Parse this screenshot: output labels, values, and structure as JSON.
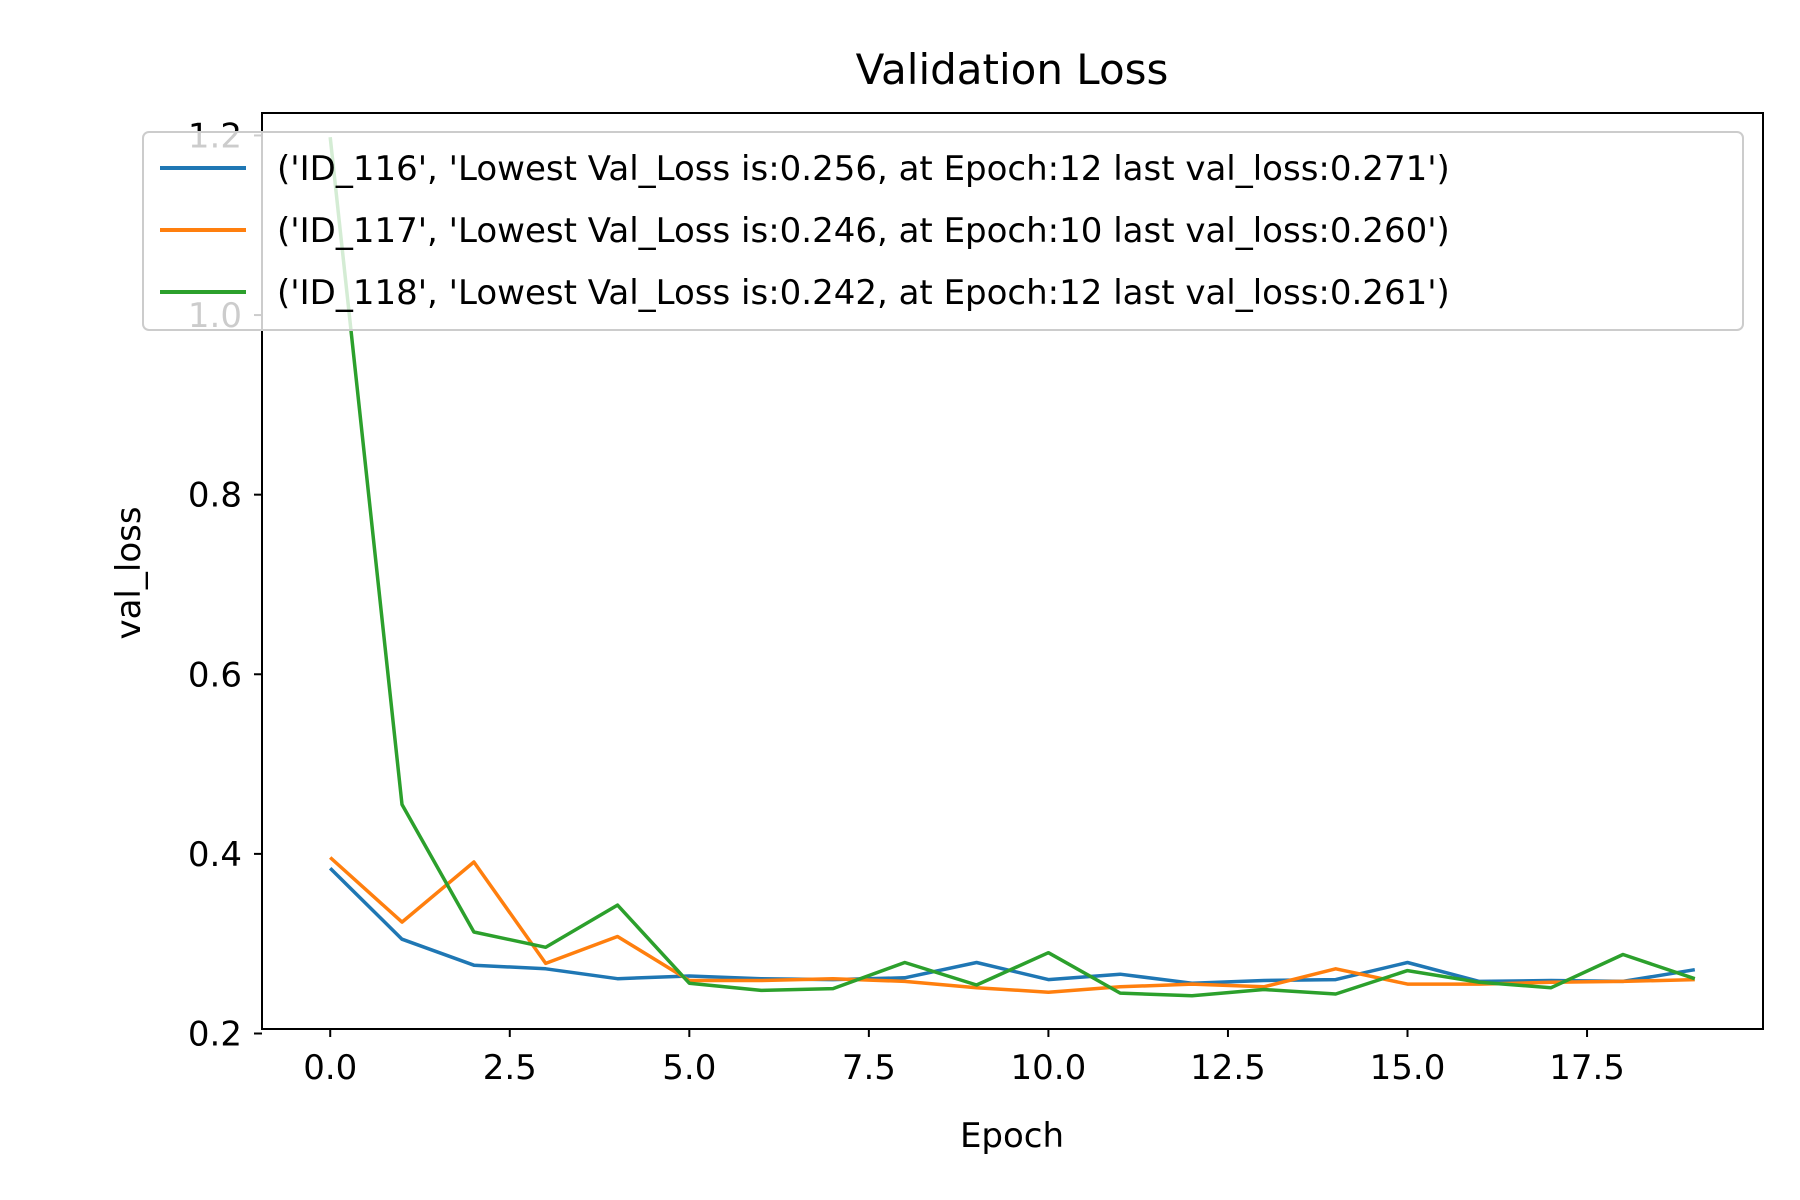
{
  "chart_data": {
    "type": "line",
    "title": "Validation Loss",
    "xlabel": "Epoch",
    "ylabel": "val_loss",
    "xlim": [
      -0.95,
      19.95
    ],
    "ylim": [
      0.205,
      1.225
    ],
    "x_ticks": [
      0.0,
      2.5,
      5.0,
      7.5,
      10.0,
      12.5,
      15.0,
      17.5
    ],
    "x_tick_labels": [
      "0.0",
      "2.5",
      "5.0",
      "7.5",
      "10.0",
      "12.5",
      "15.0",
      "17.5"
    ],
    "y_ticks": [
      0.2,
      0.4,
      0.6,
      0.8,
      1.0,
      1.2
    ],
    "y_tick_labels": [
      "0.2",
      "0.4",
      "0.6",
      "0.8",
      "1.0",
      "1.2"
    ],
    "grid": false,
    "legend_position": "top",
    "x": [
      0,
      1,
      2,
      3,
      4,
      5,
      6,
      7,
      8,
      9,
      10,
      11,
      12,
      13,
      14,
      15,
      16,
      17,
      18,
      19
    ],
    "series": [
      {
        "name": "('ID_116', 'Lowest Val_Loss is:0.256, at Epoch:12 last val_loss:0.271')",
        "color": "#1f77b4",
        "values": [
          0.384,
          0.305,
          0.276,
          0.272,
          0.261,
          0.264,
          0.261,
          0.26,
          0.262,
          0.279,
          0.26,
          0.266,
          0.256,
          0.259,
          0.26,
          0.279,
          0.258,
          0.259,
          0.258,
          0.271
        ]
      },
      {
        "name": "('ID_117', 'Lowest Val_Loss is:0.246, at Epoch:10 last val_loss:0.260')",
        "color": "#ff7f0e",
        "values": [
          0.396,
          0.324,
          0.391,
          0.278,
          0.308,
          0.259,
          0.259,
          0.261,
          0.258,
          0.251,
          0.246,
          0.252,
          0.255,
          0.252,
          0.272,
          0.255,
          0.255,
          0.257,
          0.258,
          0.26
        ]
      },
      {
        "name": "('ID_118', 'Lowest Val_Loss is:0.242, at Epoch:12 last val_loss:0.261')",
        "color": "#2ca02c",
        "values": [
          1.198,
          0.455,
          0.313,
          0.296,
          0.343,
          0.256,
          0.248,
          0.25,
          0.279,
          0.254,
          0.29,
          0.245,
          0.242,
          0.249,
          0.244,
          0.27,
          0.257,
          0.251,
          0.288,
          0.261
        ]
      }
    ]
  }
}
